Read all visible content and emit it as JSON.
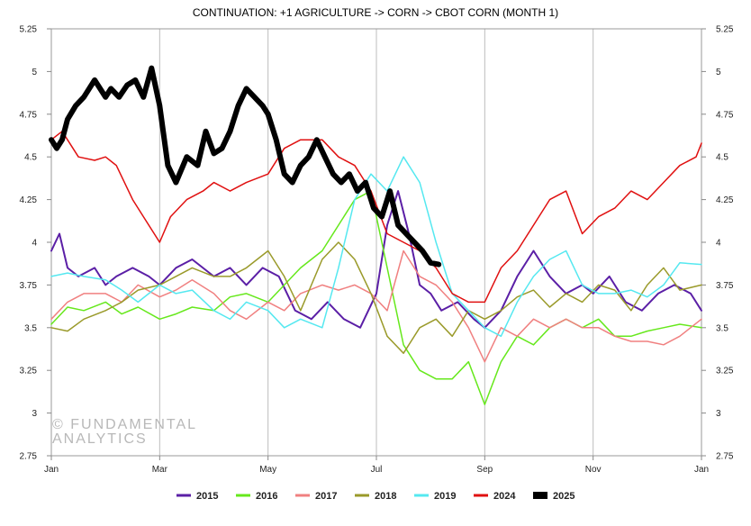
{
  "chart_data": {
    "type": "line",
    "title": "CONTINUATION: +1 AGRICULTURE -> CORN -> CBOT CORN (MONTH 1)",
    "watermark": [
      "© FUNDAMENTAL",
      "ANALYTICS"
    ],
    "xlabel": "",
    "ylabel": "",
    "x_ticks": [
      "Jan",
      "Mar",
      "May",
      "Jul",
      "Sep",
      "Nov",
      "Jan"
    ],
    "x_tick_months": [
      0,
      2,
      4,
      6,
      8,
      10,
      12
    ],
    "x_range_months": [
      0,
      12
    ],
    "ylim": [
      2.75,
      5.25
    ],
    "y_ticks": [
      {
        "v": 2.75,
        "label": "2.75"
      },
      {
        "v": 3,
        "label": "3"
      },
      {
        "v": 3.25,
        "label": "3.25"
      },
      {
        "v": 3.5,
        "label": "3.5"
      },
      {
        "v": 3.75,
        "label": "3.75"
      },
      {
        "v": 4,
        "label": "4"
      },
      {
        "v": 4.25,
        "label": "4.25"
      },
      {
        "v": 4.5,
        "label": "4.5"
      },
      {
        "v": 4.75,
        "label": "4.75"
      },
      {
        "v": 5,
        "label": "5"
      },
      {
        "v": 5.25,
        "label": "5.25"
      }
    ],
    "grid": "vertical at x ticks",
    "legend_position": "bottom",
    "x_unit": "months since Jan 1",
    "series": [
      {
        "name": "2015",
        "color": "#5b1fa6",
        "width": 2,
        "x": [
          0,
          0.15,
          0.3,
          0.5,
          0.8,
          1,
          1.2,
          1.5,
          1.8,
          2,
          2.3,
          2.6,
          3,
          3.3,
          3.6,
          3.9,
          4.2,
          4.5,
          4.8,
          5.1,
          5.4,
          5.7,
          6,
          6.2,
          6.4,
          6.6,
          6.8,
          7,
          7.2,
          7.5,
          7.8,
          8,
          8.3,
          8.6,
          8.9,
          9.2,
          9.5,
          9.8,
          10,
          10.3,
          10.6,
          10.9,
          11.2,
          11.5,
          11.8,
          12
        ],
        "values": [
          3.95,
          4.05,
          3.85,
          3.8,
          3.85,
          3.75,
          3.8,
          3.85,
          3.8,
          3.75,
          3.85,
          3.9,
          3.8,
          3.85,
          3.75,
          3.85,
          3.8,
          3.6,
          3.55,
          3.65,
          3.55,
          3.5,
          3.7,
          4.1,
          4.3,
          4.05,
          3.75,
          3.7,
          3.6,
          3.65,
          3.55,
          3.5,
          3.6,
          3.8,
          3.95,
          3.8,
          3.7,
          3.75,
          3.7,
          3.8,
          3.65,
          3.6,
          3.7,
          3.75,
          3.7,
          3.6
        ]
      },
      {
        "name": "2016",
        "color": "#66e81c",
        "width": 1.5,
        "x": [
          0,
          0.3,
          0.6,
          1,
          1.3,
          1.6,
          2,
          2.3,
          2.6,
          3,
          3.3,
          3.6,
          4,
          4.3,
          4.6,
          5,
          5.3,
          5.6,
          5.9,
          6.2,
          6.5,
          6.8,
          7.1,
          7.4,
          7.7,
          8,
          8.3,
          8.6,
          8.9,
          9.2,
          9.5,
          9.8,
          10.1,
          10.4,
          10.7,
          11,
          11.3,
          11.6,
          12
        ],
        "values": [
          3.52,
          3.62,
          3.6,
          3.65,
          3.58,
          3.62,
          3.55,
          3.58,
          3.62,
          3.6,
          3.68,
          3.7,
          3.65,
          3.75,
          3.85,
          3.95,
          4.1,
          4.25,
          4.3,
          3.85,
          3.4,
          3.25,
          3.2,
          3.2,
          3.3,
          3.05,
          3.3,
          3.45,
          3.4,
          3.5,
          3.55,
          3.5,
          3.55,
          3.45,
          3.45,
          3.48,
          3.5,
          3.52,
          3.5
        ]
      },
      {
        "name": "2017",
        "color": "#f08080",
        "width": 1.5,
        "x": [
          0,
          0.3,
          0.6,
          1,
          1.3,
          1.6,
          2,
          2.3,
          2.6,
          3,
          3.3,
          3.6,
          4,
          4.3,
          4.6,
          5,
          5.3,
          5.6,
          5.9,
          6.2,
          6.5,
          6.8,
          7.1,
          7.4,
          7.7,
          8,
          8.3,
          8.6,
          8.9,
          9.2,
          9.5,
          9.8,
          10.1,
          10.4,
          10.7,
          11,
          11.3,
          11.6,
          12
        ],
        "values": [
          3.55,
          3.65,
          3.7,
          3.7,
          3.65,
          3.75,
          3.68,
          3.72,
          3.78,
          3.7,
          3.6,
          3.55,
          3.65,
          3.6,
          3.7,
          3.75,
          3.72,
          3.75,
          3.7,
          3.6,
          3.95,
          3.8,
          3.75,
          3.65,
          3.5,
          3.3,
          3.5,
          3.45,
          3.55,
          3.5,
          3.55,
          3.5,
          3.5,
          3.45,
          3.42,
          3.42,
          3.4,
          3.45,
          3.55
        ]
      },
      {
        "name": "2018",
        "color": "#9a9a2a",
        "width": 1.5,
        "x": [
          0,
          0.3,
          0.6,
          1,
          1.3,
          1.6,
          2,
          2.3,
          2.6,
          3,
          3.3,
          3.6,
          4,
          4.3,
          4.6,
          5,
          5.3,
          5.6,
          5.9,
          6.2,
          6.5,
          6.8,
          7.1,
          7.4,
          7.7,
          8,
          8.3,
          8.6,
          8.9,
          9.2,
          9.5,
          9.8,
          10.1,
          10.4,
          10.7,
          11,
          11.3,
          11.6,
          12
        ],
        "values": [
          3.5,
          3.48,
          3.55,
          3.6,
          3.65,
          3.72,
          3.75,
          3.8,
          3.85,
          3.8,
          3.8,
          3.85,
          3.95,
          3.8,
          3.6,
          3.9,
          4.0,
          3.9,
          3.7,
          3.45,
          3.35,
          3.5,
          3.55,
          3.45,
          3.6,
          3.55,
          3.6,
          3.68,
          3.72,
          3.62,
          3.7,
          3.65,
          3.75,
          3.72,
          3.6,
          3.75,
          3.85,
          3.72,
          3.75
        ]
      },
      {
        "name": "2019",
        "color": "#55e8f0",
        "width": 1.5,
        "x": [
          0,
          0.3,
          0.6,
          1,
          1.3,
          1.6,
          2,
          2.3,
          2.6,
          3,
          3.3,
          3.6,
          4,
          4.3,
          4.6,
          5,
          5.3,
          5.6,
          5.9,
          6.2,
          6.5,
          6.8,
          7.1,
          7.4,
          7.7,
          8,
          8.3,
          8.6,
          8.9,
          9.2,
          9.5,
          9.8,
          10.1,
          10.4,
          10.7,
          11,
          11.3,
          11.6,
          12
        ],
        "values": [
          3.8,
          3.82,
          3.8,
          3.78,
          3.72,
          3.65,
          3.75,
          3.7,
          3.72,
          3.6,
          3.55,
          3.65,
          3.6,
          3.5,
          3.55,
          3.5,
          3.85,
          4.25,
          4.4,
          4.3,
          4.5,
          4.35,
          4.0,
          3.7,
          3.6,
          3.5,
          3.45,
          3.65,
          3.8,
          3.9,
          3.95,
          3.75,
          3.7,
          3.7,
          3.72,
          3.68,
          3.75,
          3.88,
          3.87
        ]
      },
      {
        "name": "2024",
        "color": "#e01010",
        "width": 1.5,
        "x": [
          0,
          0.2,
          0.5,
          0.8,
          1,
          1.2,
          1.5,
          1.7,
          2,
          2.2,
          2.5,
          2.8,
          3,
          3.3,
          3.6,
          4,
          4.3,
          4.6,
          5,
          5.3,
          5.6,
          5.9,
          6.2,
          6.5,
          6.8,
          7.1,
          7.4,
          7.7,
          8,
          8.3,
          8.6,
          8.9,
          9.2,
          9.5,
          9.8,
          10.1,
          10.4,
          10.7,
          11,
          11.3,
          11.6,
          11.9,
          12
        ],
        "values": [
          4.6,
          4.65,
          4.5,
          4.48,
          4.5,
          4.45,
          4.25,
          4.15,
          4.0,
          4.15,
          4.25,
          4.3,
          4.35,
          4.3,
          4.35,
          4.4,
          4.55,
          4.6,
          4.6,
          4.5,
          4.45,
          4.3,
          4.05,
          4.0,
          3.95,
          3.85,
          3.7,
          3.65,
          3.65,
          3.85,
          3.95,
          4.1,
          4.25,
          4.3,
          4.05,
          4.15,
          4.2,
          4.3,
          4.25,
          4.35,
          4.45,
          4.5,
          4.58
        ]
      },
      {
        "name": "2025",
        "color": "#000000",
        "width": 6,
        "x": [
          0,
          0.1,
          0.2,
          0.3,
          0.45,
          0.6,
          0.8,
          1,
          1.1,
          1.25,
          1.4,
          1.55,
          1.7,
          1.85,
          2,
          2.15,
          2.3,
          2.5,
          2.7,
          2.85,
          3,
          3.15,
          3.3,
          3.45,
          3.6,
          3.75,
          3.9,
          4,
          4.15,
          4.3,
          4.45,
          4.6,
          4.75,
          4.9,
          5.05,
          5.2,
          5.35,
          5.5,
          5.65,
          5.8,
          5.95,
          6.1,
          6.25,
          6.4,
          6.55,
          6.7,
          6.85,
          7,
          7.15
        ],
        "values": [
          4.6,
          4.55,
          4.6,
          4.72,
          4.8,
          4.85,
          4.95,
          4.85,
          4.9,
          4.85,
          4.92,
          4.95,
          4.85,
          5.02,
          4.8,
          4.45,
          4.35,
          4.5,
          4.45,
          4.65,
          4.52,
          4.55,
          4.65,
          4.8,
          4.9,
          4.85,
          4.8,
          4.75,
          4.6,
          4.4,
          4.35,
          4.45,
          4.5,
          4.6,
          4.5,
          4.4,
          4.35,
          4.4,
          4.3,
          4.35,
          4.2,
          4.15,
          4.3,
          4.1,
          4.05,
          4.0,
          3.95,
          3.88,
          3.87
        ]
      }
    ]
  }
}
